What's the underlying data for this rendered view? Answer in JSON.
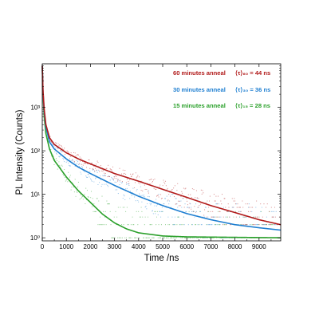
{
  "chart_data": {
    "type": "scatter",
    "title": "",
    "xlabel": "Time /ns",
    "ylabel": "PL Intensity (Counts)",
    "xlim": [
      0,
      9900
    ],
    "ylim": [
      0.85,
      10000
    ],
    "y_scale": "log",
    "grid": false,
    "legend_position": "top-right",
    "x_ticks": [
      0,
      1000,
      2000,
      3000,
      4000,
      5000,
      6000,
      7000,
      8000,
      9000
    ],
    "x_tick_labels": [
      "0",
      "1000",
      "2000",
      "3000",
      "4000",
      "5000",
      "6000",
      "7000",
      "8000",
      "9000"
    ],
    "y_ticks": [
      1,
      10,
      100,
      1000
    ],
    "y_tick_labels": [
      "10⁰",
      "10¹",
      "10²",
      "10³"
    ],
    "series": [
      {
        "name": "60 minutes anneal",
        "lifetime_label": "⟨τ⟩₆₀ = 44 ns",
        "color": "#b11a1a",
        "fit": [
          [
            0,
            9000
          ],
          [
            30,
            2500
          ],
          [
            80,
            900
          ],
          [
            150,
            400
          ],
          [
            300,
            200
          ],
          [
            500,
            140
          ],
          [
            1000,
            90
          ],
          [
            1500,
            65
          ],
          [
            2000,
            50
          ],
          [
            3000,
            30
          ],
          [
            4000,
            20
          ],
          [
            5000,
            13
          ],
          [
            6000,
            8.5
          ],
          [
            7000,
            5.5
          ],
          [
            8000,
            3.8
          ],
          [
            9000,
            2.6
          ],
          [
            9900,
            2.0
          ]
        ]
      },
      {
        "name": "30 minutes anneal",
        "lifetime_label": "⟨τ⟩₃₀ = 36 ns",
        "color": "#1f7fd1",
        "fit": [
          [
            0,
            9000
          ],
          [
            30,
            2300
          ],
          [
            80,
            800
          ],
          [
            150,
            350
          ],
          [
            300,
            160
          ],
          [
            500,
            110
          ],
          [
            1000,
            65
          ],
          [
            1500,
            42
          ],
          [
            2000,
            30
          ],
          [
            3000,
            16
          ],
          [
            4000,
            9
          ],
          [
            5000,
            5.5
          ],
          [
            6000,
            3.6
          ],
          [
            7000,
            2.6
          ],
          [
            8000,
            2.0
          ],
          [
            9000,
            1.7
          ],
          [
            9900,
            1.5
          ]
        ]
      },
      {
        "name": "15 minutes anneal",
        "lifetime_label": "⟨τ⟩₁₅ = 28 ns",
        "color": "#2aa02a",
        "fit": [
          [
            0,
            9000
          ],
          [
            30,
            2000
          ],
          [
            80,
            600
          ],
          [
            150,
            250
          ],
          [
            300,
            110
          ],
          [
            500,
            60
          ],
          [
            1000,
            25
          ],
          [
            1500,
            12
          ],
          [
            2000,
            6.5
          ],
          [
            2500,
            3.5
          ],
          [
            3000,
            2.2
          ],
          [
            3500,
            1.6
          ],
          [
            4000,
            1.3
          ],
          [
            5000,
            1.1
          ],
          [
            6000,
            1.05
          ],
          [
            9900,
            1.0
          ]
        ]
      }
    ]
  }
}
